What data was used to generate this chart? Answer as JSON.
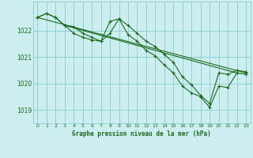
{
  "title": "Graphe pression niveau de la mer (hPa)",
  "background_color": "#cceef0",
  "grid_color": "#88cccc",
  "line_color": "#1a6b1a",
  "marker_color": "#1a6b1a",
  "xlim": [
    -0.5,
    23.5
  ],
  "ylim": [
    1018.5,
    1023.1
  ],
  "yticks": [
    1019,
    1020,
    1021,
    1022
  ],
  "xtick_labels": [
    "0",
    "1",
    "2",
    "3",
    "4",
    "5",
    "6",
    "7",
    "8",
    "9",
    "10",
    "11",
    "12",
    "13",
    "14",
    "15",
    "16",
    "17",
    "18",
    "19",
    "20",
    "21",
    "22",
    "23"
  ],
  "series1_x": [
    0,
    1,
    2,
    3,
    4,
    5,
    6,
    7,
    8,
    9,
    10,
    11,
    12,
    13,
    14,
    15,
    16,
    17,
    18,
    19,
    20,
    21,
    22,
    23
  ],
  "series1_y": [
    1022.5,
    1022.65,
    1022.5,
    1022.2,
    1021.9,
    1021.75,
    1021.65,
    1021.6,
    1022.35,
    1022.45,
    1021.85,
    1021.6,
    1021.25,
    1021.05,
    1020.7,
    1020.4,
    1019.9,
    1019.65,
    1019.5,
    1019.1,
    1019.9,
    1019.85,
    1020.4,
    1020.35
  ],
  "series2_x": [
    0,
    1,
    2,
    3,
    4,
    5,
    6,
    7,
    8,
    9,
    10,
    11,
    12,
    13,
    14,
    15,
    16,
    17,
    18,
    19,
    20,
    21,
    22,
    23
  ],
  "series2_y": [
    1022.5,
    1022.65,
    1022.5,
    1022.2,
    1022.15,
    1021.9,
    1021.75,
    1021.6,
    1021.9,
    1022.45,
    1022.2,
    1021.9,
    1021.6,
    1021.4,
    1021.1,
    1020.8,
    1020.25,
    1019.95,
    1019.55,
    1019.25,
    1020.4,
    1020.35,
    1020.5,
    1020.45
  ],
  "series3_x": [
    0,
    23
  ],
  "series3_y": [
    1022.5,
    1020.4
  ],
  "series4_x": [
    3,
    22
  ],
  "series4_y": [
    1022.2,
    1020.4
  ]
}
